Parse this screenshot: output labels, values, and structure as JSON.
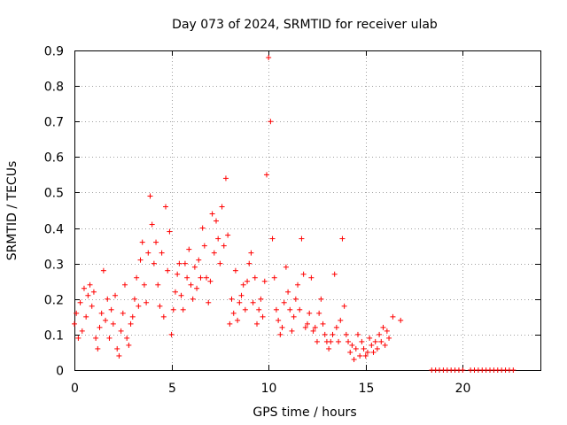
{
  "chart_data": {
    "type": "scatter",
    "title": "Day 073 of 2024, SRMTID for receiver ulab",
    "xlabel": "GPS time / hours",
    "ylabel": "SRMTID / TECUs",
    "xlim": [
      0,
      24
    ],
    "ylim": [
      0,
      0.9
    ],
    "x_ticks": [
      0,
      5,
      10,
      15,
      20
    ],
    "x_tick_labels": [
      "0",
      "5",
      "10",
      "15",
      "20"
    ],
    "y_ticks": [
      0,
      0.1,
      0.2,
      0.3,
      0.4,
      0.5,
      0.6,
      0.7,
      0.8,
      0.9
    ],
    "y_tick_labels": [
      "0",
      "0.1",
      "0.2",
      "0.3",
      "0.4",
      "0.5",
      "0.6",
      "0.7",
      "0.8",
      "0.9"
    ],
    "grid": true,
    "marker": "+",
    "series": [
      {
        "name": "SRMTID",
        "color": "#ff0000",
        "x": [
          0.0,
          0.1,
          0.2,
          0.3,
          0.4,
          0.5,
          0.6,
          0.7,
          0.8,
          0.9,
          1.0,
          1.1,
          1.2,
          1.3,
          1.4,
          1.5,
          1.6,
          1.7,
          1.8,
          1.9,
          2.0,
          2.1,
          2.2,
          2.3,
          2.4,
          2.5,
          2.6,
          2.7,
          2.8,
          2.9,
          3.0,
          3.1,
          3.2,
          3.3,
          3.4,
          3.5,
          3.6,
          3.7,
          3.8,
          3.9,
          4.0,
          4.1,
          4.2,
          4.3,
          4.4,
          4.5,
          4.6,
          4.7,
          4.8,
          4.9,
          5.0,
          5.1,
          5.2,
          5.3,
          5.4,
          5.5,
          5.6,
          5.7,
          5.8,
          5.9,
          6.0,
          6.1,
          6.2,
          6.3,
          6.4,
          6.5,
          6.6,
          6.7,
          6.8,
          6.9,
          7.0,
          7.1,
          7.2,
          7.3,
          7.4,
          7.5,
          7.6,
          7.7,
          7.8,
          7.9,
          8.0,
          8.1,
          8.2,
          8.3,
          8.4,
          8.5,
          8.6,
          8.7,
          8.8,
          8.9,
          9.0,
          9.1,
          9.2,
          9.3,
          9.4,
          9.5,
          9.6,
          9.7,
          9.8,
          9.9,
          10.0,
          10.1,
          10.2,
          10.3,
          10.4,
          10.5,
          10.6,
          10.7,
          10.8,
          10.9,
          11.0,
          11.1,
          11.2,
          11.3,
          11.4,
          11.5,
          11.6,
          11.7,
          11.8,
          11.9,
          12.0,
          12.1,
          12.2,
          12.3,
          12.4,
          12.5,
          12.6,
          12.7,
          12.8,
          12.9,
          13.0,
          13.1,
          13.2,
          13.3,
          13.4,
          13.5,
          13.6,
          13.7,
          13.8,
          13.9,
          14.0,
          14.1,
          14.2,
          14.3,
          14.4,
          14.5,
          14.6,
          14.7,
          14.8,
          14.9,
          15.0,
          15.1,
          15.2,
          15.3,
          15.4,
          15.5,
          15.6,
          15.7,
          15.8,
          15.9,
          16.0,
          16.1,
          16.2,
          16.4,
          16.8,
          18.4,
          18.6,
          18.8,
          19.0,
          19.2,
          19.4,
          19.6,
          19.8,
          20.0,
          20.4,
          20.6,
          20.8,
          21.0,
          21.2,
          21.4,
          21.6,
          21.8,
          22.0,
          22.2,
          22.4,
          22.6
        ],
        "y": [
          0.13,
          0.16,
          0.09,
          0.19,
          0.11,
          0.23,
          0.15,
          0.21,
          0.24,
          0.18,
          0.22,
          0.09,
          0.06,
          0.12,
          0.16,
          0.28,
          0.14,
          0.2,
          0.09,
          0.17,
          0.13,
          0.21,
          0.06,
          0.04,
          0.11,
          0.16,
          0.24,
          0.09,
          0.07,
          0.13,
          0.15,
          0.2,
          0.26,
          0.18,
          0.31,
          0.36,
          0.24,
          0.19,
          0.33,
          0.49,
          0.41,
          0.3,
          0.36,
          0.24,
          0.18,
          0.33,
          0.15,
          0.46,
          0.28,
          0.39,
          0.1,
          0.17,
          0.22,
          0.27,
          0.3,
          0.21,
          0.17,
          0.3,
          0.26,
          0.34,
          0.24,
          0.2,
          0.29,
          0.23,
          0.31,
          0.26,
          0.4,
          0.35,
          0.26,
          0.19,
          0.25,
          0.44,
          0.33,
          0.42,
          0.37,
          0.3,
          0.46,
          0.35,
          0.54,
          0.38,
          0.13,
          0.2,
          0.16,
          0.28,
          0.14,
          0.19,
          0.21,
          0.24,
          0.17,
          0.25,
          0.3,
          0.33,
          0.19,
          0.26,
          0.13,
          0.17,
          0.2,
          0.15,
          0.25,
          0.55,
          0.88,
          0.7,
          0.37,
          0.26,
          0.17,
          0.14,
          0.1,
          0.12,
          0.19,
          0.29,
          0.22,
          0.17,
          0.11,
          0.15,
          0.2,
          0.24,
          0.17,
          0.37,
          0.27,
          0.12,
          0.13,
          0.16,
          0.26,
          0.11,
          0.12,
          0.08,
          0.16,
          0.2,
          0.13,
          0.1,
          0.08,
          0.06,
          0.08,
          0.1,
          0.27,
          0.12,
          0.08,
          0.14,
          0.37,
          0.18,
          0.1,
          0.08,
          0.05,
          0.07,
          0.03,
          0.06,
          0.1,
          0.04,
          0.08,
          0.06,
          0.04,
          0.05,
          0.09,
          0.07,
          0.05,
          0.08,
          0.06,
          0.1,
          0.08,
          0.12,
          0.07,
          0.11,
          0.09,
          0.15,
          0.14,
          0,
          0,
          0,
          0,
          0,
          0,
          0,
          0,
          0,
          0,
          0,
          0,
          0,
          0,
          0,
          0,
          0,
          0,
          0,
          0,
          0
        ]
      }
    ]
  }
}
